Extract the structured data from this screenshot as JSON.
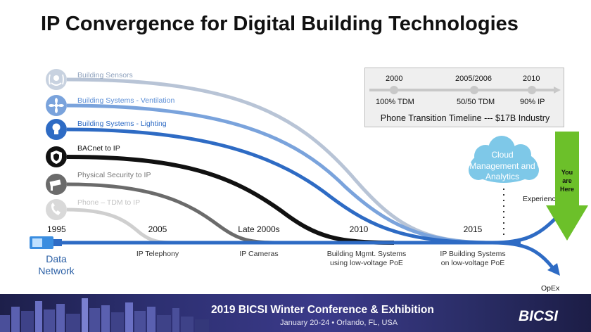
{
  "title": "IP Convergence for Digital Building Technologies",
  "streams": [
    {
      "label": "Building Sensors",
      "icon": "sensor-wave-icon",
      "color": "#b8c4d6"
    },
    {
      "label": "Building Systems - Ventilation",
      "icon": "fan-icon",
      "color": "#7aa3dc"
    },
    {
      "label": "Building Systems - Lighting",
      "icon": "lightbulb-icon",
      "color": "#2e6bc4"
    },
    {
      "label": "BACnet to IP",
      "icon": "shield-icon",
      "color": "#111111"
    },
    {
      "label": "Physical Security to IP",
      "icon": "security-camera-icon",
      "color": "#6b6b6b"
    },
    {
      "label": "Phone – TDM to IP",
      "icon": "phone-icon",
      "color": "#cfcfcf"
    }
  ],
  "base": {
    "start_year": "1995",
    "label_line1": "Data",
    "label_line2": "Network"
  },
  "milestones": [
    {
      "year": "2005",
      "line1": "IP Telephony",
      "line2": ""
    },
    {
      "year": "Late 2000s",
      "line1": "IP Cameras",
      "line2": ""
    },
    {
      "year": "2010",
      "line1": "Building Mgmt. Systems",
      "line2": "using low-voltage PoE"
    },
    {
      "year": "2015",
      "line1": "IP Building Systems",
      "line2": "on low-voltage PoE"
    }
  ],
  "timeline": {
    "points": [
      {
        "year": "2000",
        "label": "100% TDM"
      },
      {
        "year": "2005/2006",
        "label": "50/50 TDM"
      },
      {
        "year": "2010",
        "label": "90% IP"
      }
    ],
    "caption": "Phone Transition Timeline --- $17B Industry"
  },
  "cloud": {
    "line1": "Cloud",
    "line2": "Management and",
    "line3": "Analytics"
  },
  "you_are_here": {
    "line1": "You",
    "line2": "are",
    "line3": "Here"
  },
  "outputs": {
    "experience": "Experience",
    "opex": "OpEx"
  },
  "footer": {
    "title": "2019 BICSI Winter Conference & Exhibition",
    "subtitle": "January 20-24 • Orlando, FL, USA",
    "logo": "BICSI"
  },
  "colors": {
    "base_line": "#2e6bc4",
    "arrow_green": "#6cc02a",
    "cloud": "#7ec8e8"
  }
}
